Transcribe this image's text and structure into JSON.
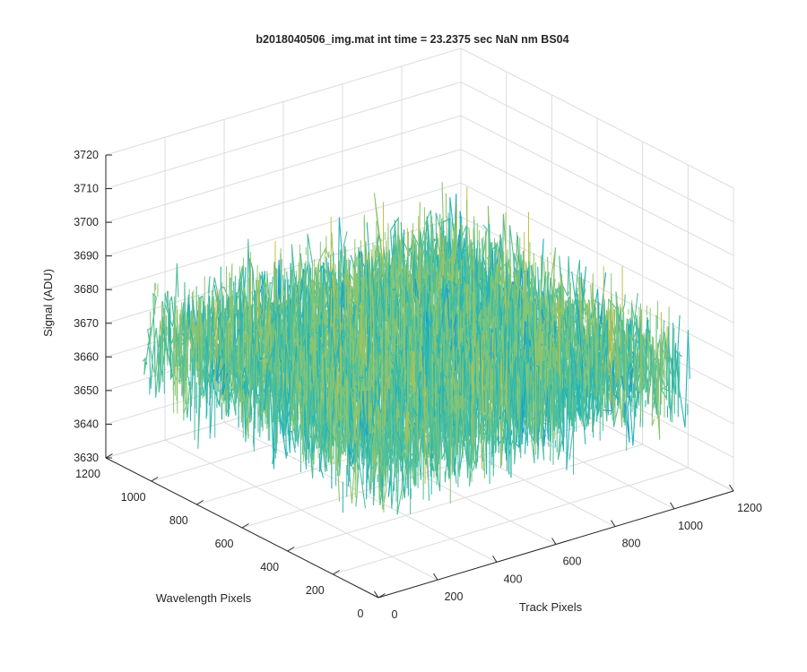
{
  "chart_data": {
    "type": "surface",
    "title": "b2018040506_img.mat int time = 23.2375 sec   NaN nm BS04",
    "xlabel": "Track Pixels",
    "ylabel": "Wavelength Pixels",
    "zlabel": "Signal (ADU)",
    "xlim": [
      0,
      1200
    ],
    "ylim": [
      0,
      1200
    ],
    "zlim": [
      3630,
      3720
    ],
    "x_ticks": [
      "0",
      "200",
      "400",
      "600",
      "800",
      "1000",
      "1200"
    ],
    "y_ticks": [
      "0",
      "200",
      "400",
      "600",
      "800",
      "1000",
      "1200"
    ],
    "z_ticks": [
      "3630",
      "3640",
      "3650",
      "3660",
      "3670",
      "3680",
      "3690",
      "3700",
      "3710",
      "3720"
    ],
    "data_extent": {
      "x": [
        1,
        1024
      ],
      "y": [
        1,
        1024
      ]
    },
    "signal_summary": {
      "mean": 3670,
      "min": 3632,
      "max": 3712
    },
    "grid": true,
    "colormap": [
      "#0072bd",
      "#1b9fcf",
      "#26b5b5",
      "#4fbf9a",
      "#8cc56f",
      "#c5be42",
      "#edbf2f"
    ]
  }
}
